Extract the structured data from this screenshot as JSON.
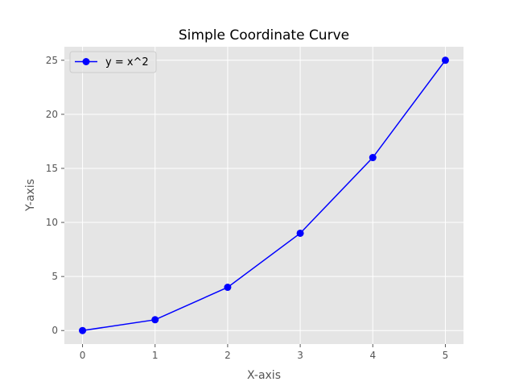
{
  "chart_data": {
    "type": "line",
    "title": "Simple Coordinate Curve",
    "xlabel": "X-axis",
    "ylabel": "Y-axis",
    "x": [
      0,
      1,
      2,
      3,
      4,
      5
    ],
    "series": [
      {
        "name": "y = x^2",
        "values": [
          0,
          1,
          4,
          9,
          16,
          25
        ],
        "color": "#0000ff",
        "marker": "circle"
      }
    ],
    "xlim": [
      -0.25,
      5.25
    ],
    "ylim": [
      -1.25,
      26.25
    ],
    "xticks": [
      0,
      1,
      2,
      3,
      4,
      5
    ],
    "yticks": [
      0,
      5,
      10,
      15,
      20,
      25
    ],
    "grid": true,
    "legend_position": "top-left",
    "background_color": "#e5e5e5",
    "grid_color": "#ffffff"
  }
}
